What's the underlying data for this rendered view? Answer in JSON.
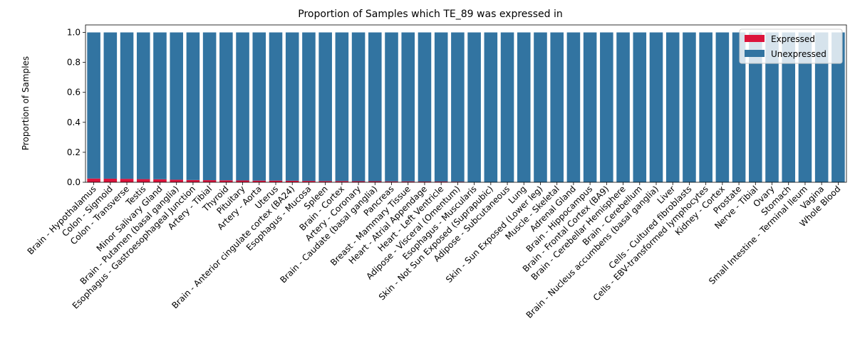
{
  "chart_data": {
    "type": "bar",
    "stacked": true,
    "title": "Proportion of Samples which TE_89 was expressed in",
    "ylabel": "Proportion of Samples",
    "xlabel": "",
    "ylim": [
      0,
      1.05
    ],
    "yticks": [
      0.0,
      0.2,
      0.4,
      0.6,
      0.8,
      1.0
    ],
    "ytick_labels": [
      "0.0",
      "0.2",
      "0.4",
      "0.6",
      "0.8",
      "1.0"
    ],
    "legend_position": "top-right",
    "categories": [
      "Brain - Hypothalamus",
      "Colon - Sigmoid",
      "Colon - Transverse",
      "Testis",
      "Minor Salivary Gland",
      "Brain - Putamen (basal ganglia)",
      "Esophagus - Gastroesophageal Junction",
      "Artery - Tibial",
      "Thyroid",
      "Pituitary",
      "Artery - Aorta",
      "Uterus",
      "Brain - Anterior cingulate cortex (BA24)",
      "Esophagus - Mucosa",
      "Spleen",
      "Brain - Cortex",
      "Artery - Coronary",
      "Brain - Caudate (basal ganglia)",
      "Pancreas",
      "Breast - Mammary Tissue",
      "Heart - Atrial Appendage",
      "Heart - Left Ventricle",
      "Adipose - Visceral (Omentum)",
      "Esophagus - Muscularis",
      "Skin - Not Sun Exposed (Suprapubic)",
      "Adipose - Subcutaneous",
      "Lung",
      "Skin - Sun Exposed (Lower leg)",
      "Muscle - Skeletal",
      "Adrenal Gland",
      "Brain - Hippocampus",
      "Brain - Frontal Cortex (BA9)",
      "Brain - Cerebellar Hemisphere",
      "Brain - Cerebellum",
      "Brain - Nucleus accumbens (basal ganglia)",
      "Liver",
      "Cells - Cultured fibroblasts",
      "Cells - EBV-transformed lymphocytes",
      "Kidney - Cortex",
      "Prostate",
      "Nerve - Tibial",
      "Ovary",
      "Stomach",
      "Small Intestine - Terminal Ileum",
      "Vagina",
      "Whole Blood"
    ],
    "series": [
      {
        "name": "Expressed",
        "color": "#dc143c",
        "values": [
          0.025,
          0.024,
          0.023,
          0.021,
          0.02,
          0.017,
          0.015,
          0.014,
          0.013,
          0.012,
          0.011,
          0.011,
          0.01,
          0.009,
          0.008,
          0.008,
          0.007,
          0.007,
          0.006,
          0.006,
          0.005,
          0.005,
          0.004,
          0.0,
          0.0,
          0.0,
          0.0,
          0.0,
          0.0,
          0.0,
          0.0,
          0.0,
          0.0,
          0.0,
          0.0,
          0.0,
          0.0,
          0.0,
          0.0,
          0.0,
          0.0,
          0.0,
          0.0,
          0.0,
          0.0,
          0.0
        ]
      },
      {
        "name": "Unexpressed",
        "color": "#3274a1",
        "values": [
          0.975,
          0.976,
          0.977,
          0.979,
          0.98,
          0.983,
          0.985,
          0.986,
          0.987,
          0.988,
          0.989,
          0.989,
          0.99,
          0.991,
          0.992,
          0.992,
          0.993,
          0.993,
          0.994,
          0.994,
          0.995,
          0.995,
          0.996,
          1.0,
          1.0,
          1.0,
          1.0,
          1.0,
          1.0,
          1.0,
          1.0,
          1.0,
          1.0,
          1.0,
          1.0,
          1.0,
          1.0,
          1.0,
          1.0,
          1.0,
          1.0,
          1.0,
          1.0,
          1.0,
          1.0,
          1.0
        ]
      }
    ]
  }
}
